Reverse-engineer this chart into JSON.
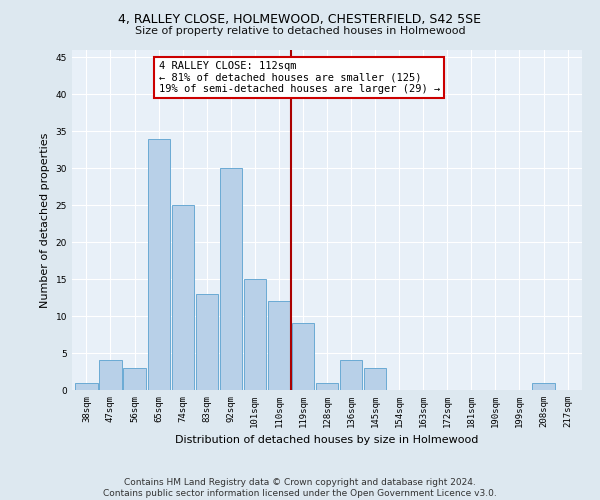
{
  "title1": "4, RALLEY CLOSE, HOLMEWOOD, CHESTERFIELD, S42 5SE",
  "title2": "Size of property relative to detached houses in Holmewood",
  "xlabel": "Distribution of detached houses by size in Holmewood",
  "ylabel": "Number of detached properties",
  "categories": [
    "38sqm",
    "47sqm",
    "56sqm",
    "65sqm",
    "74sqm",
    "83sqm",
    "92sqm",
    "101sqm",
    "110sqm",
    "119sqm",
    "128sqm",
    "136sqm",
    "145sqm",
    "154sqm",
    "163sqm",
    "172sqm",
    "181sqm",
    "190sqm",
    "199sqm",
    "208sqm",
    "217sqm"
  ],
  "values": [
    1,
    4,
    3,
    34,
    25,
    13,
    30,
    15,
    12,
    9,
    1,
    4,
    3,
    0,
    0,
    0,
    0,
    0,
    0,
    1,
    0
  ],
  "bar_color": "#b8d0e8",
  "bar_edge_color": "#6aaad4",
  "vline_x_index": 8.5,
  "vline_color": "#aa0000",
  "annotation_text": "4 RALLEY CLOSE: 112sqm\n← 81% of detached houses are smaller (125)\n19% of semi-detached houses are larger (29) →",
  "annotation_box_color": "#ffffff",
  "annotation_box_edge": "#cc0000",
  "ylim": [
    0,
    46
  ],
  "yticks": [
    0,
    5,
    10,
    15,
    20,
    25,
    30,
    35,
    40,
    45
  ],
  "footer1": "Contains HM Land Registry data © Crown copyright and database right 2024.",
  "footer2": "Contains public sector information licensed under the Open Government Licence v3.0.",
  "bg_color": "#dde8f0",
  "plot_bg_color": "#e8f0f8",
  "grid_color": "#ffffff",
  "title1_fontsize": 9,
  "title2_fontsize": 8,
  "ylabel_fontsize": 8,
  "xlabel_fontsize": 8,
  "tick_fontsize": 6.5,
  "footer_fontsize": 6.5,
  "annot_fontsize": 7.5
}
